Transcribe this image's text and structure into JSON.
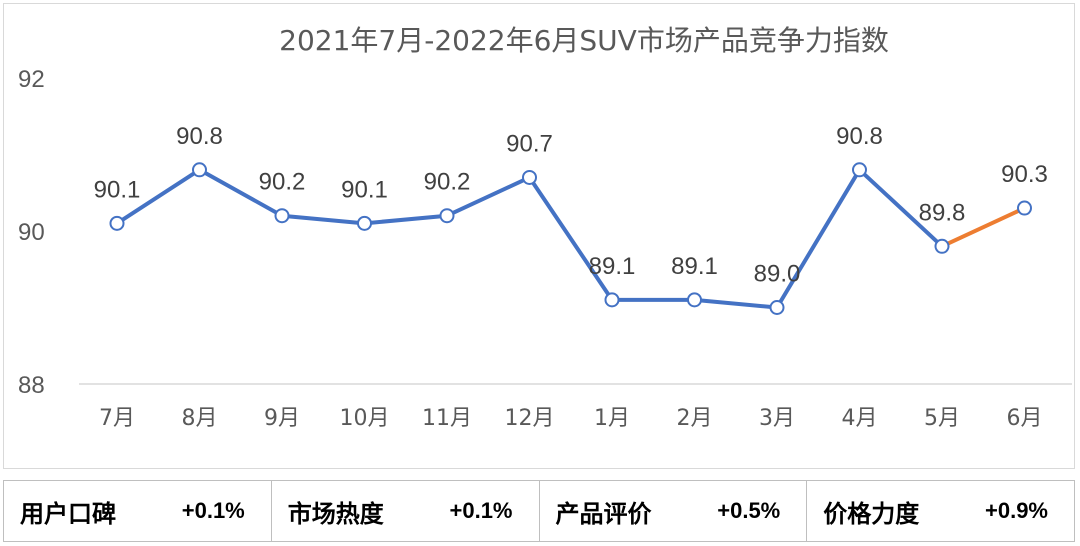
{
  "chart_data": {
    "type": "line",
    "title": "2021年7月-2022年6月SUV市场产品竞争力指数",
    "categories": [
      "7月",
      "8月",
      "9月",
      "10月",
      "11月",
      "12月",
      "1月",
      "2月",
      "3月",
      "4月",
      "5月",
      "6月"
    ],
    "values": [
      90.1,
      90.8,
      90.2,
      90.1,
      90.2,
      90.7,
      89.1,
      89.1,
      89.0,
      90.8,
      89.8,
      90.3
    ],
    "data_labels": [
      "90.1",
      "90.8",
      "90.2",
      "90.1",
      "90.2",
      "90.7",
      "89.1",
      "89.1",
      "89.0",
      "90.8",
      "89.8",
      "90.3"
    ],
    "ylim": [
      88,
      92
    ],
    "yticks": [
      88,
      90,
      92
    ],
    "ytick_labels": [
      "88",
      "90",
      "92"
    ],
    "grid": false,
    "colors": {
      "line": "#4472c4",
      "highlight_segment": "#ed7d31",
      "drop_line": "#c5d3ea"
    }
  },
  "summary": [
    {
      "label": "用户口碑",
      "value": "+0.1%"
    },
    {
      "label": "市场热度",
      "value": "+0.1%"
    },
    {
      "label": "产品评价",
      "value": "+0.5%"
    },
    {
      "label": "价格力度",
      "value": "+0.9%"
    }
  ]
}
